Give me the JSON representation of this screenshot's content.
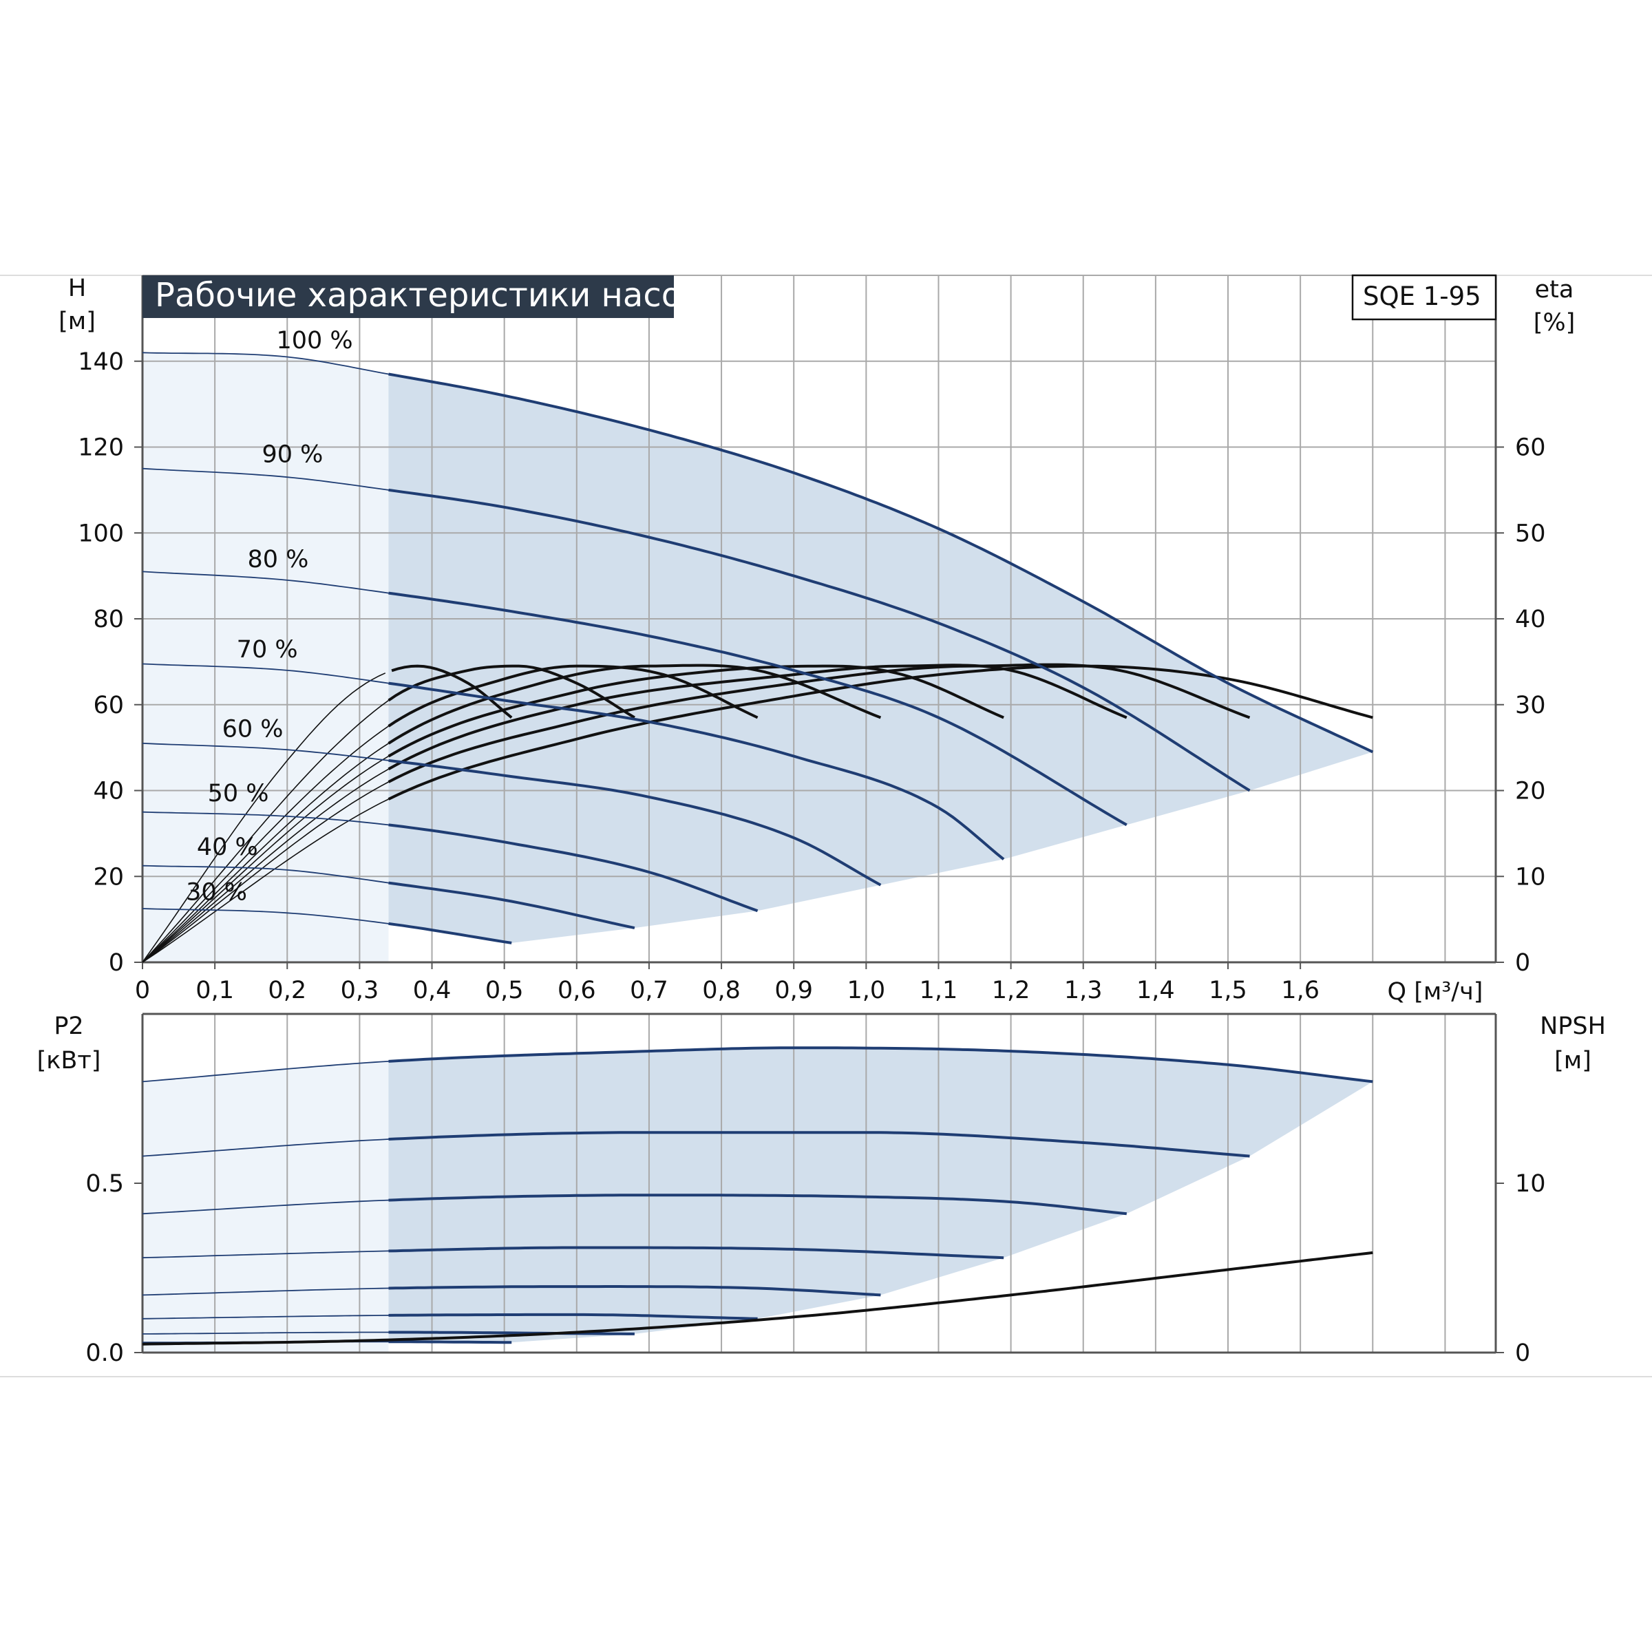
{
  "header": {
    "title": "Рабочие характеристики насоса",
    "model": "SQE 1-95"
  },
  "colors": {
    "curve_blue": "#1f3d73",
    "efficiency_black": "#111111",
    "region_fill": "#d2dfec",
    "left_band_fill": "#eef4fa",
    "grid": "#a9a9a9",
    "title_bg": "#2d3a4a"
  },
  "chart_data": [
    {
      "type": "line",
      "name": "head",
      "ylabel_left": [
        "H",
        "[м]"
      ],
      "ylabel_right": [
        "eta",
        "[%]"
      ],
      "xlabel": "Q [м³/ч]",
      "xlim": [
        0,
        1.87
      ],
      "ylim": [
        0,
        160
      ],
      "y2lim": [
        0,
        80
      ],
      "x_ticks": [
        "0",
        "0,1",
        "0,2",
        "0,3",
        "0,4",
        "0,5",
        "0,6",
        "0,7",
        "0,8",
        "0,9",
        "1,0",
        "1,1",
        "1,2",
        "1,3",
        "1,4",
        "1,5",
        "1,6"
      ],
      "y_ticks": [
        "0",
        "20",
        "40",
        "60",
        "80",
        "100",
        "120",
        "140"
      ],
      "y2_ticks": [
        "0",
        "10",
        "20",
        "30",
        "40",
        "50",
        "60"
      ],
      "operating_region_q_min": 0.34,
      "series": [
        {
          "name": "100 %",
          "label": "100 %",
          "qmax": 1.7,
          "points": [
            [
              0,
              142
            ],
            [
              0.2,
              141
            ],
            [
              0.34,
              137
            ],
            [
              0.5,
              132
            ],
            [
              0.7,
              124
            ],
            [
              0.9,
              114
            ],
            [
              1.1,
              101
            ],
            [
              1.3,
              84
            ],
            [
              1.5,
              65
            ],
            [
              1.7,
              49
            ]
          ]
        },
        {
          "name": "90 %",
          "label": "90 %",
          "qmax": 1.53,
          "points": [
            [
              0,
              115
            ],
            [
              0.2,
              113
            ],
            [
              0.34,
              110
            ],
            [
              0.5,
              106
            ],
            [
              0.7,
              99
            ],
            [
              0.9,
              90
            ],
            [
              1.1,
              79
            ],
            [
              1.3,
              64
            ],
            [
              1.53,
              40
            ]
          ]
        },
        {
          "name": "80 %",
          "label": "80 %",
          "qmax": 1.36,
          "points": [
            [
              0,
              91
            ],
            [
              0.2,
              89
            ],
            [
              0.34,
              86
            ],
            [
              0.5,
              82
            ],
            [
              0.7,
              76
            ],
            [
              0.9,
              68
            ],
            [
              1.1,
              57
            ],
            [
              1.36,
              32
            ]
          ]
        },
        {
          "name": "70 %",
          "label": "70 %",
          "qmax": 1.19,
          "points": [
            [
              0,
              69.5
            ],
            [
              0.2,
              68
            ],
            [
              0.34,
              65
            ],
            [
              0.5,
              61
            ],
            [
              0.7,
              56
            ],
            [
              0.9,
              48
            ],
            [
              1.1,
              36
            ],
            [
              1.19,
              24
            ]
          ]
        },
        {
          "name": "60 %",
          "label": "60 %",
          "qmax": 1.02,
          "points": [
            [
              0,
              51
            ],
            [
              0.2,
              49.5
            ],
            [
              0.34,
              47
            ],
            [
              0.5,
              43.5
            ],
            [
              0.7,
              38.5
            ],
            [
              0.9,
              29
            ],
            [
              1.02,
              18
            ]
          ]
        },
        {
          "name": "50 %",
          "label": "50 %",
          "qmax": 0.85,
          "points": [
            [
              0,
              35
            ],
            [
              0.2,
              34
            ],
            [
              0.34,
              32
            ],
            [
              0.5,
              28
            ],
            [
              0.7,
              21
            ],
            [
              0.85,
              12
            ]
          ]
        },
        {
          "name": "40 %",
          "label": "40 %",
          "qmax": 0.68,
          "points": [
            [
              0,
              22.5
            ],
            [
              0.2,
              21.5
            ],
            [
              0.34,
              18.5
            ],
            [
              0.5,
              14.5
            ],
            [
              0.68,
              8
            ]
          ]
        },
        {
          "name": "30 %",
          "label": "30 %",
          "qmax": 0.51,
          "points": [
            [
              0,
              12.5
            ],
            [
              0.2,
              11.5
            ],
            [
              0.34,
              9
            ],
            [
              0.51,
              4.5
            ]
          ]
        }
      ],
      "efficiency_series": [
        {
          "qmax": 1.7,
          "points": [
            [
              0,
              0
            ],
            [
              0.34,
              19
            ],
            [
              0.6,
              26
            ],
            [
              0.9,
              31
            ],
            [
              1.1,
              33.5
            ],
            [
              1.3,
              34.5
            ],
            [
              1.5,
              33
            ],
            [
              1.7,
              28.5
            ]
          ]
        },
        {
          "qmax": 1.53,
          "points": [
            [
              0,
              0
            ],
            [
              0.34,
              21
            ],
            [
              0.6,
              28
            ],
            [
              0.9,
              32.5
            ],
            [
              1.15,
              34.5
            ],
            [
              1.35,
              34
            ],
            [
              1.53,
              28.5
            ]
          ]
        },
        {
          "qmax": 1.36,
          "points": [
            [
              0,
              0
            ],
            [
              0.34,
              22.5
            ],
            [
              0.6,
              30
            ],
            [
              0.9,
              33.5
            ],
            [
              1.05,
              34.5
            ],
            [
              1.2,
              34
            ],
            [
              1.36,
              28.5
            ]
          ]
        },
        {
          "qmax": 1.19,
          "points": [
            [
              0,
              0
            ],
            [
              0.34,
              24
            ],
            [
              0.6,
              31.5
            ],
            [
              0.8,
              34
            ],
            [
              0.95,
              34.5
            ],
            [
              1.05,
              33.5
            ],
            [
              1.19,
              28.5
            ]
          ]
        },
        {
          "qmax": 1.02,
          "points": [
            [
              0,
              0
            ],
            [
              0.34,
              25.5
            ],
            [
              0.55,
              32.5
            ],
            [
              0.7,
              34.5
            ],
            [
              0.85,
              34
            ],
            [
              1.02,
              28.5
            ]
          ]
        },
        {
          "qmax": 0.85,
          "points": [
            [
              0,
              0
            ],
            [
              0.34,
              27.5
            ],
            [
              0.5,
              33
            ],
            [
              0.6,
              34.5
            ],
            [
              0.72,
              33.5
            ],
            [
              0.85,
              28.5
            ]
          ]
        },
        {
          "qmax": 0.68,
          "points": [
            [
              0,
              0
            ],
            [
              0.34,
              30.5
            ],
            [
              0.45,
              34
            ],
            [
              0.52,
              34.5
            ],
            [
              0.6,
              32.5
            ],
            [
              0.68,
              28.5
            ]
          ]
        },
        {
          "qmax": 0.51,
          "points": [
            [
              0,
              0
            ],
            [
              0.2,
              23.5
            ],
            [
              0.3,
              32
            ],
            [
              0.38,
              34.5
            ],
            [
              0.45,
              32.5
            ],
            [
              0.51,
              28.5
            ]
          ]
        }
      ]
    },
    {
      "type": "line",
      "name": "power",
      "ylabel_left": [
        "P2",
        "[кВт]"
      ],
      "ylabel_right": [
        "NPSH",
        "[м]"
      ],
      "xlim": [
        0,
        1.87
      ],
      "ylim": [
        0,
        1.0
      ],
      "y2lim": [
        0,
        20
      ],
      "y_ticks": [
        "0.0",
        "0.5"
      ],
      "y2_ticks": [
        "0",
        "10"
      ],
      "series": [
        {
          "name": "100 %",
          "qmax": 1.7,
          "points": [
            [
              0,
              0.8
            ],
            [
              0.34,
              0.86
            ],
            [
              0.7,
              0.89
            ],
            [
              0.9,
              0.9
            ],
            [
              1.2,
              0.89
            ],
            [
              1.5,
              0.85
            ],
            [
              1.7,
              0.8
            ]
          ]
        },
        {
          "name": "90 %",
          "qmax": 1.53,
          "points": [
            [
              0,
              0.58
            ],
            [
              0.34,
              0.63
            ],
            [
              0.7,
              0.65
            ],
            [
              1.0,
              0.65
            ],
            [
              1.3,
              0.62
            ],
            [
              1.53,
              0.58
            ]
          ]
        },
        {
          "name": "80 %",
          "qmax": 1.36,
          "points": [
            [
              0,
              0.41
            ],
            [
              0.34,
              0.45
            ],
            [
              0.7,
              0.465
            ],
            [
              1.0,
              0.46
            ],
            [
              1.2,
              0.445
            ],
            [
              1.36,
              0.41
            ]
          ]
        },
        {
          "name": "70 %",
          "qmax": 1.19,
          "points": [
            [
              0,
              0.28
            ],
            [
              0.34,
              0.3
            ],
            [
              0.6,
              0.31
            ],
            [
              0.9,
              0.305
            ],
            [
              1.19,
              0.28
            ]
          ]
        },
        {
          "name": "60 %",
          "qmax": 1.02,
          "points": [
            [
              0,
              0.17
            ],
            [
              0.34,
              0.19
            ],
            [
              0.6,
              0.195
            ],
            [
              0.85,
              0.19
            ],
            [
              1.02,
              0.17
            ]
          ]
        },
        {
          "name": "50 %",
          "qmax": 0.85,
          "points": [
            [
              0,
              0.1
            ],
            [
              0.34,
              0.11
            ],
            [
              0.6,
              0.112
            ],
            [
              0.85,
              0.1
            ]
          ]
        },
        {
          "name": "40 %",
          "qmax": 0.68,
          "points": [
            [
              0,
              0.055
            ],
            [
              0.34,
              0.06
            ],
            [
              0.68,
              0.055
            ]
          ]
        },
        {
          "name": "30 %",
          "qmax": 0.51,
          "points": [
            [
              0,
              0.03
            ],
            [
              0.34,
              0.032
            ],
            [
              0.51,
              0.03
            ]
          ]
        }
      ],
      "npsh": {
        "points": [
          [
            0,
            0.5
          ],
          [
            0.3,
            0.7
          ],
          [
            0.6,
            1.2
          ],
          [
            0.9,
            2.1
          ],
          [
            1.2,
            3.4
          ],
          [
            1.5,
            4.9
          ],
          [
            1.7,
            5.9
          ]
        ]
      }
    }
  ]
}
